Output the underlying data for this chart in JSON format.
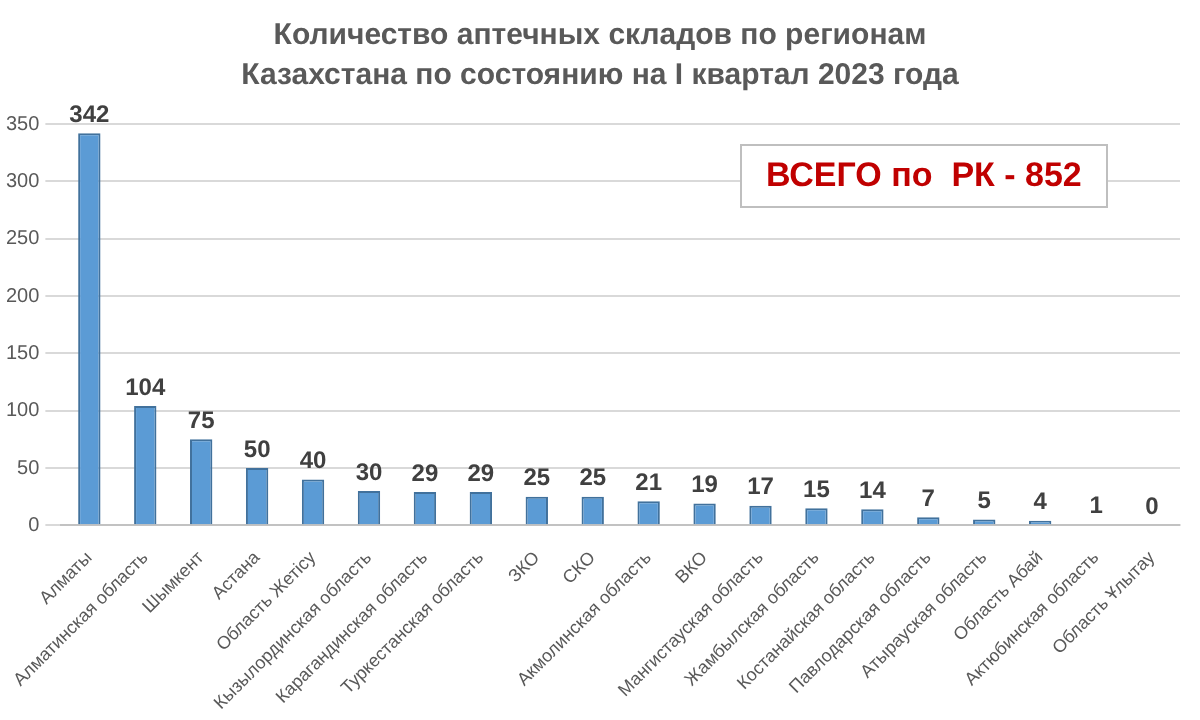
{
  "chart_data": {
    "type": "bar",
    "title": "Количество аптечных складов по регионам Казахстана по состоянию на I квартал 2023 года",
    "categories": [
      "Алматы",
      "Алматинская область",
      "Шымкент",
      "Астана",
      "Область Жетісу",
      "Кызылординская область",
      "Карагандинская область",
      "Туркестанская область",
      "ЗКО",
      "СКО",
      "Акмолинская область",
      "ВКО",
      "Мангистауская область",
      "Жамбылская область",
      "Костанайская область",
      "Павлодарская область",
      "Атырауская область",
      "Область Абай",
      "Актюбинская область",
      "Область Ұлытау"
    ],
    "values": [
      342,
      104,
      75,
      50,
      40,
      30,
      29,
      29,
      25,
      25,
      21,
      19,
      17,
      15,
      14,
      7,
      5,
      4,
      1,
      0
    ],
    "color": "#5b9bd5",
    "ylim": [
      0,
      350
    ],
    "yticks": [
      0,
      50,
      100,
      150,
      200,
      250,
      300,
      350
    ],
    "grid": "y",
    "data_labels": true,
    "annotations": [
      "ВСЕГО по  РК - 852"
    ]
  }
}
